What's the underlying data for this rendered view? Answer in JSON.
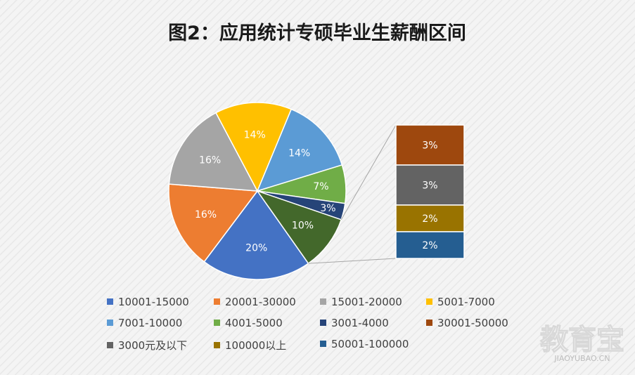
{
  "chart_data": {
    "type": "pie",
    "title": "图2：应用统计专硕毕业生薪酬区间",
    "subtype": "bar-of-pie",
    "slices": [
      {
        "name": "10001-15000",
        "value": 20,
        "label": "20%",
        "color": "#4472C4"
      },
      {
        "name": "20001-30000",
        "value": 16,
        "label": "16%",
        "color": "#ED7D31"
      },
      {
        "name": "15001-20000",
        "value": 16,
        "label": "16%",
        "color": "#A5A5A5"
      },
      {
        "name": "5001-7000",
        "value": 14,
        "label": "14%",
        "color": "#FFC000"
      },
      {
        "name": "7001-10000",
        "value": 14,
        "label": "14%",
        "color": "#5B9BD5"
      },
      {
        "name": "4001-5000",
        "value": 7,
        "label": "7%",
        "color": "#70AD47"
      },
      {
        "name": "3001-4000",
        "value": 3,
        "label": "3%",
        "color": "#264478"
      },
      {
        "name": "",
        "value": 10,
        "label": "10%",
        "color": "#43682B"
      }
    ],
    "bar_segments": [
      {
        "name": "30001-50000",
        "value": 3,
        "label": "3%",
        "color": "#9E480E"
      },
      {
        "name": "3000元及以下",
        "value": 3,
        "label": "3%",
        "color": "#636363"
      },
      {
        "name": "100000以上",
        "value": 2,
        "label": "2%",
        "color": "#997300"
      },
      {
        "name": "50001-100000",
        "value": 2,
        "label": "2%",
        "color": "#255E91"
      }
    ],
    "legend": [
      {
        "name": "10001-15000",
        "color": "#4472C4"
      },
      {
        "name": "20001-30000",
        "color": "#ED7D31"
      },
      {
        "name": "15001-20000",
        "color": "#A5A5A5"
      },
      {
        "name": "5001-7000",
        "color": "#FFC000"
      },
      {
        "name": "7001-10000",
        "color": "#5B9BD5"
      },
      {
        "name": "4001-5000",
        "color": "#70AD47"
      },
      {
        "name": "3001-4000",
        "color": "#264478"
      },
      {
        "name": "30001-50000",
        "color": "#9E480E"
      },
      {
        "name": "3000元及以下",
        "color": "#636363"
      },
      {
        "name": "100000以上",
        "color": "#997300"
      },
      {
        "name": "50001-100000",
        "color": "#255E91"
      }
    ],
    "legend_position": "bottom"
  },
  "watermark": {
    "main": "教育宝",
    "sub": "JIAOYUBAO.CN"
  }
}
